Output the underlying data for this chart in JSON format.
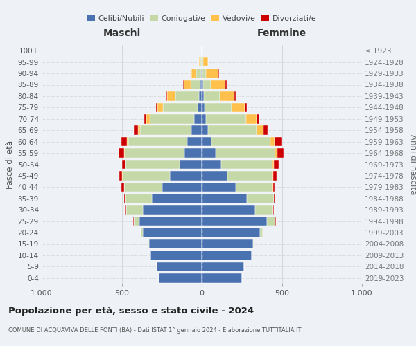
{
  "age_groups": [
    "0-4",
    "5-9",
    "10-14",
    "15-19",
    "20-24",
    "25-29",
    "30-34",
    "35-39",
    "40-44",
    "45-49",
    "50-54",
    "55-59",
    "60-64",
    "65-69",
    "70-74",
    "75-79",
    "80-84",
    "85-89",
    "90-94",
    "95-99",
    "100+"
  ],
  "birth_years": [
    "2019-2023",
    "2014-2018",
    "2009-2013",
    "2004-2008",
    "1999-2003",
    "1994-1998",
    "1989-1993",
    "1984-1988",
    "1979-1983",
    "1974-1978",
    "1969-1973",
    "1964-1968",
    "1959-1963",
    "1954-1958",
    "1949-1953",
    "1944-1948",
    "1939-1943",
    "1934-1938",
    "1929-1933",
    "1924-1928",
    "≤ 1923"
  ],
  "colors": {
    "celibi": "#4a72b0",
    "coniugati": "#c5d9a8",
    "vedovi": "#ffc04c",
    "divorziati": "#cc0000"
  },
  "maschi": {
    "celibi": [
      270,
      280,
      320,
      330,
      370,
      390,
      370,
      310,
      245,
      200,
      140,
      110,
      90,
      65,
      48,
      28,
      18,
      8,
      5,
      2,
      2
    ],
    "coniugati": [
      0,
      0,
      0,
      2,
      10,
      35,
      100,
      165,
      240,
      295,
      335,
      370,
      370,
      320,
      275,
      215,
      145,
      60,
      28,
      5,
      0
    ],
    "vedovi": [
      0,
      0,
      0,
      0,
      0,
      0,
      0,
      0,
      1,
      2,
      3,
      5,
      8,
      15,
      25,
      32,
      52,
      45,
      30,
      10,
      0
    ],
    "divorziati": [
      0,
      0,
      0,
      0,
      0,
      3,
      5,
      10,
      15,
      20,
      20,
      35,
      35,
      25,
      12,
      10,
      5,
      5,
      2,
      0,
      0
    ]
  },
  "femmine": {
    "celibi": [
      250,
      265,
      310,
      320,
      365,
      405,
      335,
      280,
      210,
      160,
      120,
      85,
      60,
      38,
      28,
      18,
      12,
      8,
      5,
      2,
      2
    ],
    "coniugati": [
      0,
      0,
      0,
      5,
      18,
      55,
      112,
      172,
      232,
      282,
      322,
      372,
      370,
      302,
      248,
      168,
      100,
      50,
      20,
      5,
      0
    ],
    "vedovi": [
      0,
      0,
      0,
      0,
      0,
      0,
      0,
      0,
      2,
      5,
      8,
      15,
      25,
      45,
      65,
      82,
      90,
      90,
      80,
      30,
      2
    ],
    "divorziati": [
      0,
      0,
      0,
      0,
      0,
      3,
      5,
      8,
      12,
      20,
      30,
      40,
      45,
      25,
      20,
      15,
      10,
      8,
      2,
      0,
      0
    ]
  },
  "title": "Popolazione per età, sesso e stato civile - 2024",
  "subtitle": "COMUNE DI ACQUAVIVA DELLE FONTI (BA) - Dati ISTAT 1° gennaio 2024 - Elaborazione TUTTITALIA.IT",
  "ylabel": "Fasce di età",
  "ylabel_right": "Anni di nascita",
  "xlabel_maschi": "Maschi",
  "xlabel_femmine": "Femmine",
  "legend_labels": [
    "Celibi/Nubili",
    "Coniugati/e",
    "Vedovi/e",
    "Divorziati/e"
  ],
  "xlim": 1000,
  "background_color": "#eef2f7"
}
